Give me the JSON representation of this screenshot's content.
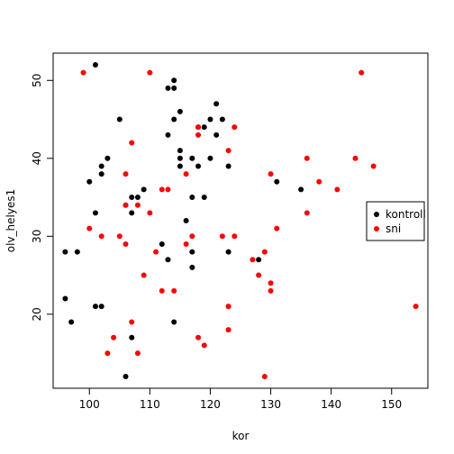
{
  "chart_data": {
    "type": "scatter",
    "xlabel": "kor",
    "ylabel": "olv_helyes1",
    "xlim": [
      94,
      156
    ],
    "ylim": [
      10.5,
      53.5
    ],
    "x_ticks": [
      100,
      110,
      120,
      130,
      140,
      150
    ],
    "y_ticks": [
      20,
      30,
      40,
      50
    ],
    "grid": false,
    "legend_position": "right",
    "series": [
      {
        "name": "kontroll",
        "color": "#000000",
        "points": [
          [
            101,
            52
          ],
          [
            96,
            22
          ],
          [
            96,
            28
          ],
          [
            97,
            19
          ],
          [
            98,
            28
          ],
          [
            100,
            37
          ],
          [
            101,
            33
          ],
          [
            101,
            21
          ],
          [
            102,
            21
          ],
          [
            102,
            38
          ],
          [
            102,
            39
          ],
          [
            103,
            40
          ],
          [
            105,
            45
          ],
          [
            106,
            34
          ],
          [
            106,
            12
          ],
          [
            107,
            35
          ],
          [
            107,
            33
          ],
          [
            107,
            17
          ],
          [
            108,
            35
          ],
          [
            109,
            36
          ],
          [
            112,
            29
          ],
          [
            113,
            49
          ],
          [
            113,
            43
          ],
          [
            113,
            27
          ],
          [
            114,
            50
          ],
          [
            114,
            49
          ],
          [
            114,
            45
          ],
          [
            114,
            19
          ],
          [
            115,
            46
          ],
          [
            115,
            41
          ],
          [
            115,
            40
          ],
          [
            115,
            39
          ],
          [
            116,
            32
          ],
          [
            117,
            40
          ],
          [
            117,
            35
          ],
          [
            117,
            28
          ],
          [
            117,
            26
          ],
          [
            118,
            44
          ],
          [
            118,
            39
          ],
          [
            119,
            44
          ],
          [
            119,
            35
          ],
          [
            120,
            45
          ],
          [
            120,
            40
          ],
          [
            121,
            47
          ],
          [
            121,
            43
          ],
          [
            122,
            45
          ],
          [
            123,
            39
          ],
          [
            123,
            28
          ],
          [
            128,
            27
          ],
          [
            131,
            37
          ],
          [
            135,
            36
          ]
        ]
      },
      {
        "name": "sni",
        "color": "#ff0000",
        "points": [
          [
            99,
            51
          ],
          [
            100,
            31
          ],
          [
            102,
            30
          ],
          [
            103,
            15
          ],
          [
            104,
            17
          ],
          [
            105,
            30
          ],
          [
            106,
            38
          ],
          [
            106,
            34
          ],
          [
            106,
            29
          ],
          [
            107,
            42
          ],
          [
            107,
            19
          ],
          [
            108,
            15
          ],
          [
            108,
            34
          ],
          [
            109,
            25
          ],
          [
            110,
            51
          ],
          [
            110,
            33
          ],
          [
            111,
            28
          ],
          [
            112,
            36
          ],
          [
            112,
            23
          ],
          [
            113,
            36
          ],
          [
            114,
            23
          ],
          [
            116,
            38
          ],
          [
            116,
            29
          ],
          [
            117,
            30
          ],
          [
            118,
            44
          ],
          [
            118,
            43
          ],
          [
            118,
            17
          ],
          [
            119,
            16
          ],
          [
            122,
            30
          ],
          [
            123,
            41
          ],
          [
            123,
            21
          ],
          [
            123,
            18
          ],
          [
            124,
            44
          ],
          [
            124,
            30
          ],
          [
            127,
            27
          ],
          [
            128,
            25
          ],
          [
            129,
            28
          ],
          [
            129,
            12
          ],
          [
            130,
            38
          ],
          [
            130,
            24
          ],
          [
            130,
            23
          ],
          [
            131,
            31
          ],
          [
            136,
            40
          ],
          [
            136,
            33
          ],
          [
            138,
            37
          ],
          [
            141,
            36
          ],
          [
            144,
            40
          ],
          [
            145,
            51
          ],
          [
            147,
            39
          ],
          [
            154,
            21
          ]
        ]
      }
    ]
  }
}
